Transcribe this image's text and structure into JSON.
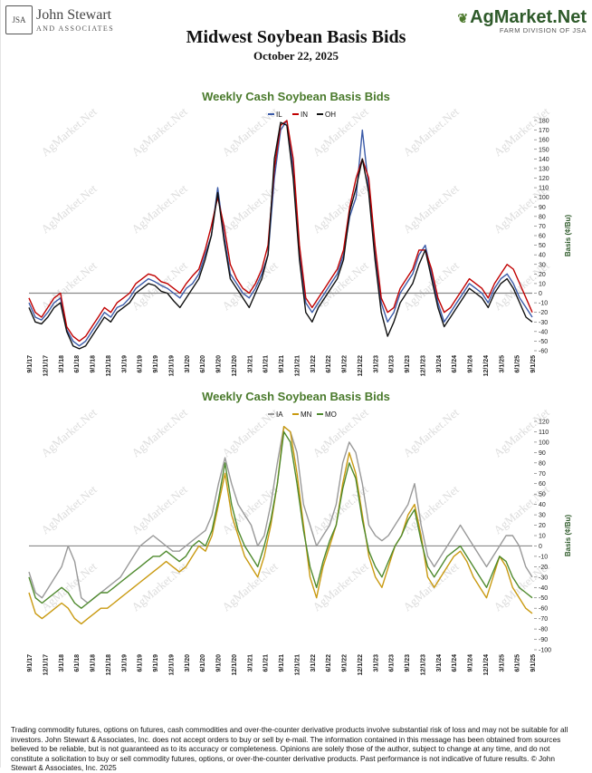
{
  "header": {
    "left_logo_mark": "JSA",
    "left_logo_name": "John Stewart",
    "left_logo_sub": "AND ASSOCIATES",
    "right_logo_name": "AgMarket.Net",
    "right_logo_sub": "FARM DIVISION OF JSA",
    "title": "Midwest Soybean Basis Bids",
    "date": "October 22, 2025"
  },
  "colors": {
    "title_green": "#4a7a2c",
    "IL": "#3a5aa8",
    "IN": "#c00000",
    "OH": "#111111",
    "IA": "#999999",
    "MN": "#c99a10",
    "MO": "#4f8a2e",
    "zero_line": "#8a8a8a"
  },
  "watermark": "AgMarket.Net",
  "chart_data": [
    {
      "type": "line",
      "title": "Weekly Cash Soybean Basis Bids",
      "ylabel": "Basis (¢/Bu)",
      "ylim": [
        -60,
        180
      ],
      "ytick_step": 10,
      "x_ticks": [
        "9/1/17",
        "12/1/17",
        "3/1/18",
        "6/1/18",
        "9/1/18",
        "12/1/18",
        "3/1/19",
        "6/1/19",
        "9/1/19",
        "12/1/19",
        "3/1/20",
        "6/1/20",
        "9/1/20",
        "12/1/20",
        "3/1/21",
        "6/1/21",
        "9/1/21",
        "12/1/21",
        "3/1/22",
        "6/1/22",
        "9/1/22",
        "12/1/22",
        "3/1/23",
        "6/1/23",
        "9/1/23",
        "12/1/23",
        "3/1/24",
        "6/1/24",
        "9/1/24",
        "12/1/24",
        "3/1/25",
        "6/1/25",
        "9/1/25"
      ],
      "legend_position": "top-right",
      "grid": false,
      "series": [
        {
          "name": "IL",
          "color": "#3a5aa8",
          "values": [
            -10,
            -25,
            -28,
            -20,
            -10,
            -5,
            -38,
            -50,
            -55,
            -50,
            -40,
            -30,
            -20,
            -25,
            -15,
            -12,
            -5,
            5,
            10,
            15,
            12,
            8,
            5,
            0,
            -5,
            5,
            10,
            20,
            40,
            60,
            110,
            60,
            20,
            10,
            0,
            -5,
            5,
            20,
            40,
            120,
            170,
            180,
            130,
            40,
            -10,
            -20,
            -10,
            0,
            10,
            20,
            40,
            80,
            100,
            170,
            110,
            40,
            -10,
            -30,
            -20,
            0,
            10,
            20,
            40,
            50,
            20,
            -10,
            -30,
            -20,
            -10,
            0,
            10,
            5,
            0,
            -10,
            5,
            15,
            20,
            10,
            -5,
            -15,
            -25
          ]
        },
        {
          "name": "IN",
          "color": "#c00000",
          "values": [
            -5,
            -20,
            -25,
            -15,
            -5,
            0,
            -35,
            -45,
            -50,
            -45,
            -35,
            -25,
            -15,
            -20,
            -10,
            -5,
            0,
            10,
            15,
            20,
            18,
            12,
            10,
            5,
            0,
            10,
            18,
            25,
            45,
            70,
            100,
            70,
            30,
            15,
            5,
            0,
            10,
            25,
            50,
            130,
            175,
            180,
            140,
            50,
            -5,
            -15,
            -5,
            5,
            15,
            25,
            45,
            90,
            120,
            140,
            120,
            50,
            -5,
            -20,
            -15,
            5,
            15,
            25,
            45,
            45,
            25,
            -5,
            -20,
            -15,
            -5,
            5,
            15,
            10,
            5,
            -5,
            10,
            20,
            30,
            25,
            10,
            -5,
            -20
          ]
        },
        {
          "name": "OH",
          "color": "#111111",
          "values": [
            -15,
            -30,
            -32,
            -25,
            -15,
            -10,
            -40,
            -55,
            -58,
            -55,
            -45,
            -35,
            -25,
            -30,
            -20,
            -15,
            -10,
            0,
            5,
            10,
            8,
            2,
            0,
            -8,
            -15,
            -5,
            5,
            15,
            35,
            60,
            105,
            55,
            15,
            5,
            -5,
            -15,
            0,
            15,
            40,
            140,
            178,
            175,
            120,
            35,
            -20,
            -30,
            -15,
            -5,
            5,
            15,
            35,
            85,
            110,
            140,
            105,
            35,
            -20,
            -45,
            -30,
            -10,
            0,
            10,
            30,
            45,
            15,
            -15,
            -35,
            -25,
            -15,
            -5,
            5,
            0,
            -5,
            -15,
            0,
            10,
            15,
            5,
            -10,
            -25,
            -30
          ]
        }
      ]
    },
    {
      "type": "line",
      "title": "Weekly Cash Soybean Basis Bids",
      "ylabel": "Basis (¢/Bu)",
      "ylim": [
        -100,
        120
      ],
      "ytick_step": 10,
      "x_ticks": [
        "9/1/17",
        "12/1/17",
        "3/1/18",
        "6/1/18",
        "9/1/18",
        "12/1/18",
        "3/1/19",
        "6/1/19",
        "9/1/19",
        "12/1/19",
        "3/1/20",
        "6/1/20",
        "9/1/20",
        "12/1/20",
        "3/1/21",
        "6/1/21",
        "9/1/21",
        "12/1/21",
        "3/1/22",
        "6/1/22",
        "9/1/22",
        "12/1/22",
        "3/1/23",
        "6/1/23",
        "9/1/23",
        "12/1/23",
        "3/1/24",
        "6/1/24",
        "9/1/24",
        "12/1/24",
        "3/1/25",
        "6/1/25",
        "9/1/25"
      ],
      "legend_position": "top-right",
      "grid": false,
      "series": [
        {
          "name": "IA",
          "color": "#999999",
          "values": [
            -25,
            -45,
            -50,
            -40,
            -30,
            -20,
            0,
            -15,
            -50,
            -55,
            -50,
            -45,
            -40,
            -35,
            -30,
            -20,
            -10,
            0,
            5,
            10,
            5,
            0,
            -5,
            -5,
            0,
            5,
            10,
            15,
            30,
            60,
            85,
            60,
            40,
            30,
            20,
            0,
            10,
            40,
            80,
            115,
            110,
            90,
            40,
            20,
            0,
            10,
            20,
            40,
            80,
            100,
            90,
            60,
            20,
            10,
            5,
            10,
            20,
            30,
            40,
            60,
            20,
            -10,
            -20,
            -10,
            0,
            10,
            20,
            10,
            0,
            -10,
            -20,
            -10,
            0,
            10,
            10,
            0,
            -20,
            -30
          ]
        },
        {
          "name": "MN",
          "color": "#c99a10",
          "values": [
            -45,
            -65,
            -70,
            -65,
            -60,
            -55,
            -60,
            -70,
            -75,
            -70,
            -65,
            -60,
            -60,
            -55,
            -50,
            -45,
            -40,
            -35,
            -30,
            -25,
            -20,
            -15,
            -20,
            -25,
            -20,
            -10,
            0,
            -5,
            10,
            40,
            70,
            30,
            10,
            -10,
            -20,
            -30,
            -10,
            20,
            60,
            115,
            110,
            70,
            20,
            -30,
            -50,
            -20,
            0,
            20,
            60,
            90,
            70,
            30,
            -10,
            -30,
            -40,
            -20,
            0,
            10,
            30,
            40,
            10,
            -30,
            -40,
            -30,
            -20,
            -10,
            -5,
            -15,
            -30,
            -40,
            -50,
            -30,
            -10,
            -20,
            -40,
            -50,
            -60,
            -65
          ]
        },
        {
          "name": "MO",
          "color": "#4f8a2e",
          "values": [
            -30,
            -50,
            -55,
            -50,
            -45,
            -40,
            -45,
            -55,
            -60,
            -55,
            -50,
            -45,
            -45,
            -40,
            -35,
            -30,
            -25,
            -20,
            -15,
            -10,
            -10,
            -5,
            -10,
            -15,
            -10,
            0,
            5,
            0,
            15,
            45,
            80,
            40,
            15,
            0,
            -10,
            -20,
            0,
            25,
            60,
            110,
            100,
            60,
            15,
            -20,
            -40,
            -15,
            5,
            20,
            55,
            80,
            65,
            25,
            -5,
            -20,
            -30,
            -15,
            0,
            10,
            25,
            35,
            5,
            -20,
            -30,
            -20,
            -10,
            -5,
            0,
            -10,
            -20,
            -30,
            -40,
            -25,
            -10,
            -15,
            -30,
            -40,
            -45,
            -50
          ]
        }
      ]
    }
  ],
  "disclaimer": "Trading commodity futures, options on futures, cash commodities and over-the-counter derivative products involve substantial risk of loss and may not be suitable for all investors. John Stewart & Associates, Inc. does not accept orders to buy or sell by e-mail. The information contained in this message has been obtained from sources believed to be reliable, but is not guaranteed as to its accuracy or completeness. Opinions are solely those of the author, subject to change at any time, and do not constitute a solicitation to buy or sell commodity futures, options, or over-the-counter derivative products. Past performance is not indicative of future results. © John Stewart & Associates, Inc. 2025"
}
